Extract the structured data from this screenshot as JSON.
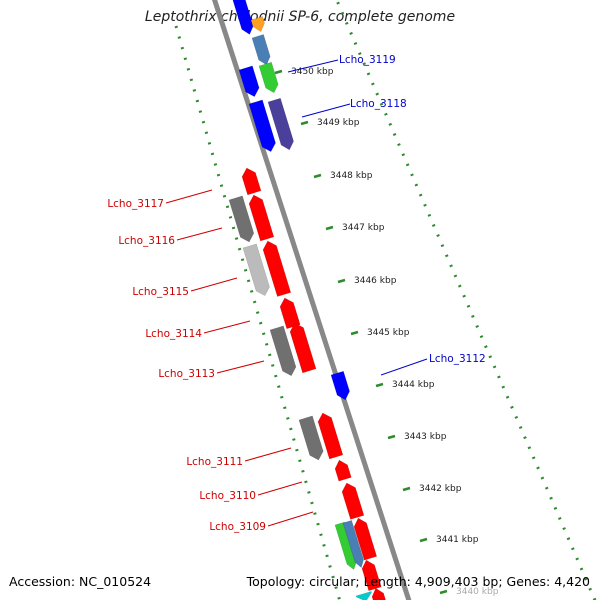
{
  "title": "Leptothrix cholodnii SP-6, complete genome",
  "footer": {
    "accession": "Accession: NC_010524",
    "topology": "Topology: circular; Length: 4,909,403 bp; Genes: 4,420"
  },
  "ticks": [
    {
      "label": "3450 kbp",
      "kbp": 3450
    },
    {
      "label": "3449 kbp",
      "kbp": 3449
    },
    {
      "label": "3448 kbp",
      "kbp": 3448
    },
    {
      "label": "3447 kbp",
      "kbp": 3447
    },
    {
      "label": "3446 kbp",
      "kbp": 3446
    },
    {
      "label": "3445 kbp",
      "kbp": 3445
    },
    {
      "label": "3444 kbp",
      "kbp": 3444
    },
    {
      "label": "3443 kbp",
      "kbp": 3443
    },
    {
      "label": "3442 kbp",
      "kbp": 3442
    },
    {
      "label": "3441 kbp",
      "kbp": 3441
    },
    {
      "label": "3440 kbp",
      "kbp": 3440
    }
  ],
  "gene_labels": [
    {
      "name": "Lcho_3119",
      "strand": "forward"
    },
    {
      "name": "Lcho_3118",
      "strand": "forward"
    },
    {
      "name": "Lcho_3117",
      "strand": "reverse"
    },
    {
      "name": "Lcho_3116",
      "strand": "reverse"
    },
    {
      "name": "Lcho_3115",
      "strand": "reverse"
    },
    {
      "name": "Lcho_3114",
      "strand": "reverse"
    },
    {
      "name": "Lcho_3113",
      "strand": "reverse"
    },
    {
      "name": "Lcho_3112",
      "strand": "forward"
    },
    {
      "name": "Lcho_3111",
      "strand": "reverse"
    },
    {
      "name": "Lcho_3110",
      "strand": "reverse"
    },
    {
      "name": "Lcho_3109",
      "strand": "reverse"
    }
  ],
  "colors": {
    "forward_label": "#0000cc",
    "reverse_label": "#cc0000",
    "backbone": "#888888",
    "dotted_ring": "#2e8b2e",
    "cds_red": "#ff0000",
    "cds_blue": "#0000ff",
    "cds_gray": "#707070",
    "cds_lightgray": "#bbbbbb",
    "cds_green": "#33cc33",
    "cds_steel": "#4a7fb5",
    "cds_purple": "#4a3f9a",
    "cds_orange": "#ffa020",
    "cds_cyan": "#00cccc"
  }
}
